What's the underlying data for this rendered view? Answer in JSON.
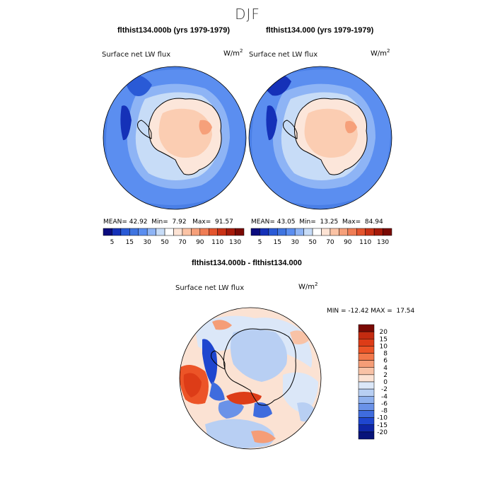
{
  "page_title": "DJF",
  "panel_a": {
    "case_title": "flthist134.000b (yrs 1979-1979)",
    "variable": "Surface net LW flux",
    "units": "W/m",
    "units_exp": "2",
    "mean_label": "MEAN=",
    "mean": "42.92",
    "min_label": "Min=",
    "min": "7.92",
    "max_label": "Max=",
    "max": "91.57"
  },
  "panel_b": {
    "case_title": "flthist134.000 (yrs 1979-1979)",
    "variable": "Surface net LW flux",
    "units": "W/m",
    "units_exp": "2",
    "mean_label": "MEAN=",
    "mean": "43.05",
    "min_label": "Min=",
    "min": "13.25",
    "max_label": "Max=",
    "max": "84.94"
  },
  "diff_panel": {
    "case_title": "flthist134.000b - flthist134.000",
    "variable": "Surface net LW flux",
    "units": "W/m",
    "units_exp": "2",
    "minmax": "MIN = -12.42 MAX =  17.54"
  },
  "colorbar_top": {
    "labels": [
      "5",
      "15",
      "30",
      "50",
      "70",
      "90",
      "110",
      "130"
    ],
    "colors": [
      "#0b0b7e",
      "#1531b8",
      "#2a5ad6",
      "#3f74e0",
      "#5b8ef0",
      "#8eb4f5",
      "#c7dcf7",
      "#ffffff",
      "#fde3d4",
      "#fbc3a5",
      "#f6a07a",
      "#ef7d55",
      "#e4552e",
      "#c93216",
      "#a61a0a",
      "#7a0a04"
    ]
  },
  "colorbar_diff": {
    "labels": [
      "20",
      "15",
      "10",
      "8",
      "6",
      "4",
      "2",
      "0",
      "-2",
      "-4",
      "-6",
      "-8",
      "-10",
      "-15",
      "-20"
    ],
    "colors": [
      "#7a0a04",
      "#c32b10",
      "#dd3c17",
      "#ec5427",
      "#f2784a",
      "#f59d77",
      "#f8c2a6",
      "#fbe2d3",
      "#dbe7f8",
      "#b8cff3",
      "#8fb1ee",
      "#6a92e8",
      "#3f6cde",
      "#1f46cf",
      "#0f26a6",
      "#07137a"
    ]
  },
  "colors": {
    "ocean_blue": "#3f74e0",
    "continent": "#f8cfb6",
    "outline": "#000000"
  }
}
